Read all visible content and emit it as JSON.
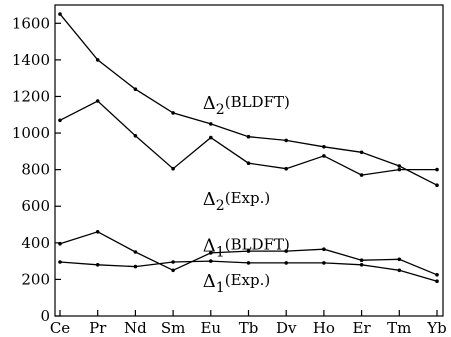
{
  "chart_data": {
    "type": "line",
    "categories": [
      "Ce",
      "Pr",
      "Nd",
      "Sm",
      "Eu",
      "Tb",
      "Dv",
      "Ho",
      "Er",
      "Tm",
      "Yb"
    ],
    "ylim": [
      0,
      1700
    ],
    "yticks": [
      0,
      200,
      400,
      600,
      800,
      1000,
      1200,
      1400,
      1600
    ],
    "grid": false,
    "legend": "none",
    "series": [
      {
        "name": "Δ2(BLDFT)",
        "values": [
          1650,
          1400,
          1240,
          1110,
          1050,
          980,
          960,
          925,
          895,
          820,
          715
        ],
        "color": "#000000"
      },
      {
        "name": "Δ2(Exp.)",
        "values": [
          1070,
          1175,
          985,
          805,
          975,
          835,
          805,
          875,
          770,
          800,
          800
        ],
        "color": "#000000"
      },
      {
        "name": "Δ1(BLDFT)",
        "values": [
          395,
          460,
          350,
          250,
          345,
          355,
          355,
          365,
          305,
          310,
          225
        ],
        "color": "#000000"
      },
      {
        "name": "Δ1(Exp.)",
        "values": [
          295,
          280,
          270,
          295,
          300,
          290,
          290,
          290,
          280,
          250,
          190
        ],
        "color": "#000000"
      }
    ],
    "annotations": [
      {
        "base": "Δ",
        "sub": "2",
        "tail": "(BLDFT)",
        "at": [
          "Eu",
          1165
        ]
      },
      {
        "base": "Δ",
        "sub": "2",
        "tail": "(Exp.)",
        "at": [
          "Eu",
          640
        ]
      },
      {
        "base": "Δ",
        "sub": "1",
        "tail": "(BLDFT)",
        "at": [
          "Eu",
          385
        ]
      },
      {
        "base": "Δ",
        "sub": "1",
        "tail": "(Exp.)",
        "at": [
          "Eu",
          190
        ]
      }
    ]
  }
}
